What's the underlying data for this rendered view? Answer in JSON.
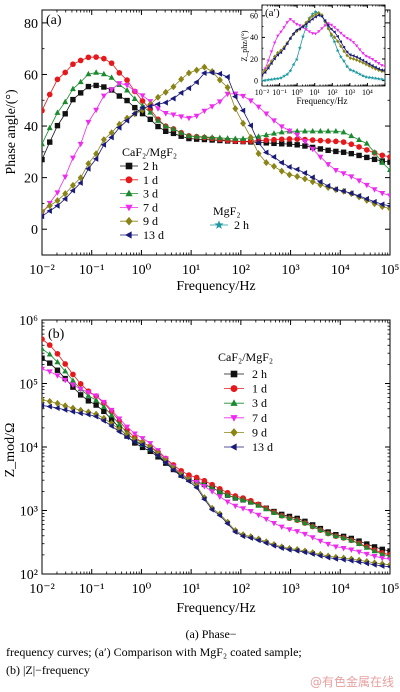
{
  "colors": {
    "2h": "#111111",
    "1d": "#e5191c",
    "3d": "#1a8a2e",
    "7d": "#ee2bee",
    "9d": "#8a8417",
    "13d": "#1a1a7a",
    "mgf2": "#1f9aa0"
  },
  "chart_data": [
    {
      "id": "a",
      "type": "line",
      "panel_label": "(a)",
      "ylabel": "Phase angle/(°)",
      "xlabel": "Frequency/Hz",
      "x_scale": "log",
      "xlim": [
        0.01,
        100000
      ],
      "ylim": [
        -10,
        85
      ],
      "y_ticks": [
        0,
        20,
        40,
        60,
        80
      ],
      "x_tick_labels": [
        "10⁻²",
        "10⁻¹",
        "10⁰",
        "10¹",
        "10²",
        "10³",
        "10⁴",
        "10⁵"
      ],
      "legend_title": "CaF₂/MgF₂",
      "legend2_title": "MgF₂",
      "series": [
        {
          "name": "2 h",
          "key": "2h",
          "marker": "square",
          "points": [
            [
              0.01,
              27
            ],
            [
              0.02,
              40
            ],
            [
              0.05,
              52
            ],
            [
              0.1,
              56
            ],
            [
              0.2,
              55
            ],
            [
              0.5,
              50
            ],
            [
              1,
              45
            ],
            [
              3,
              38
            ],
            [
              10,
              35
            ],
            [
              100,
              34
            ],
            [
              1000,
              33
            ],
            [
              10000,
              30
            ],
            [
              100000,
              26
            ]
          ]
        },
        {
          "name": "1 d",
          "key": "1d",
          "marker": "circle",
          "points": [
            [
              0.01,
              46
            ],
            [
              0.02,
              58
            ],
            [
              0.05,
              65
            ],
            [
              0.1,
              67
            ],
            [
              0.2,
              66
            ],
            [
              0.5,
              58
            ],
            [
              1,
              50
            ],
            [
              3,
              40
            ],
            [
              10,
              36
            ],
            [
              100,
              34
            ],
            [
              1000,
              35
            ],
            [
              10000,
              34
            ],
            [
              100000,
              28
            ]
          ]
        },
        {
          "name": "3 d",
          "key": "3d",
          "marker": "triangle-up",
          "points": [
            [
              0.01,
              33
            ],
            [
              0.02,
              45
            ],
            [
              0.05,
              56
            ],
            [
              0.1,
              61
            ],
            [
              0.2,
              60
            ],
            [
              0.5,
              54
            ],
            [
              1,
              48
            ],
            [
              3,
              40
            ],
            [
              10,
              36
            ],
            [
              100,
              35
            ],
            [
              1000,
              38
            ],
            [
              10000,
              38
            ],
            [
              30000,
              34
            ],
            [
              100000,
              23
            ]
          ]
        },
        {
          "name": "7 d",
          "key": "7d",
          "marker": "triangle-down",
          "points": [
            [
              0.01,
              6
            ],
            [
              0.02,
              14
            ],
            [
              0.05,
              30
            ],
            [
              0.1,
              44
            ],
            [
              0.2,
              53
            ],
            [
              0.4,
              57
            ],
            [
              1,
              52
            ],
            [
              3,
              45
            ],
            [
              10,
              43
            ],
            [
              30,
              48
            ],
            [
              60,
              53
            ],
            [
              100,
              52
            ],
            [
              1000,
              38
            ],
            [
              10000,
              22
            ],
            [
              100000,
              13
            ]
          ]
        },
        {
          "name": "9 d",
          "key": "9d",
          "marker": "diamond",
          "points": [
            [
              0.01,
              7
            ],
            [
              0.02,
              11
            ],
            [
              0.05,
              18
            ],
            [
              0.1,
              27
            ],
            [
              0.2,
              36
            ],
            [
              0.5,
              43
            ],
            [
              1,
              46
            ],
            [
              3,
              53
            ],
            [
              10,
              61
            ],
            [
              20,
              63
            ],
            [
              50,
              56
            ],
            [
              100,
              42
            ],
            [
              300,
              26
            ],
            [
              1000,
              21
            ],
            [
              10000,
              15
            ],
            [
              100000,
              8
            ]
          ]
        },
        {
          "name": "13 d",
          "key": "13d",
          "marker": "triangle-left",
          "points": [
            [
              0.01,
              5
            ],
            [
              0.02,
              9
            ],
            [
              0.05,
              16
            ],
            [
              0.1,
              25
            ],
            [
              0.2,
              34
            ],
            [
              0.5,
              42
            ],
            [
              1,
              47
            ],
            [
              3,
              49
            ],
            [
              10,
              55
            ],
            [
              20,
              61
            ],
            [
              50,
              60
            ],
            [
              100,
              47
            ],
            [
              300,
              30
            ],
            [
              1000,
              24
            ],
            [
              10000,
              15
            ],
            [
              100000,
              9
            ]
          ]
        }
      ],
      "mgf2_legend": {
        "name": "2 h",
        "key": "mgf2",
        "marker": "star"
      }
    },
    {
      "id": "a_inset",
      "type": "line",
      "panel_label": "(a′)",
      "ylabel": "Z_phz/(°)",
      "xlabel": "Frequency/Hz",
      "x_scale": "log",
      "xlim": [
        0.01,
        100000
      ],
      "ylim": [
        -5,
        70
      ],
      "y_ticks": [
        0,
        20,
        40,
        60
      ],
      "x_tick_labels": [
        "10⁻²",
        "10⁻¹",
        "10⁰",
        "10¹",
        "10²",
        "10³",
        "10⁴"
      ],
      "series": [
        {
          "name": "MgF₂ 2 h",
          "key": "mgf2",
          "marker": "star",
          "points": [
            [
              0.01,
              0
            ],
            [
              0.1,
              2
            ],
            [
              0.3,
              6
            ],
            [
              1,
              20
            ],
            [
              2,
              40
            ],
            [
              5,
              58
            ],
            [
              10,
              64
            ],
            [
              20,
              62
            ],
            [
              50,
              52
            ],
            [
              100,
              40
            ],
            [
              300,
              22
            ],
            [
              1000,
              10
            ],
            [
              10000,
              3
            ],
            [
              100000,
              1
            ]
          ]
        },
        {
          "name": "7 d",
          "key": "7d",
          "marker": "triangle-down",
          "points": [
            [
              0.01,
              6
            ],
            [
              0.1,
              44
            ],
            [
              0.4,
              57
            ],
            [
              1,
              52
            ],
            [
              10,
              43
            ],
            [
              60,
              53
            ],
            [
              1000,
              38
            ],
            [
              10000,
              22
            ],
            [
              100000,
              13
            ]
          ]
        },
        {
          "name": "9 d",
          "key": "9d",
          "marker": "diamond",
          "points": [
            [
              0.01,
              7
            ],
            [
              0.1,
              27
            ],
            [
              1,
              46
            ],
            [
              10,
              61
            ],
            [
              20,
              63
            ],
            [
              100,
              42
            ],
            [
              1000,
              21
            ],
            [
              100000,
              8
            ]
          ]
        },
        {
          "name": "13 d",
          "key": "13d",
          "marker": "triangle-left",
          "points": [
            [
              0.01,
              5
            ],
            [
              0.1,
              25
            ],
            [
              1,
              47
            ],
            [
              20,
              61
            ],
            [
              100,
              47
            ],
            [
              1000,
              24
            ],
            [
              100000,
              9
            ]
          ]
        }
      ]
    },
    {
      "id": "b",
      "type": "line",
      "panel_label": "(b)",
      "ylabel": "Z_mod/Ω",
      "xlabel": "Frequency/Hz",
      "x_scale": "log",
      "y_scale": "log",
      "xlim": [
        0.01,
        100000
      ],
      "ylim": [
        100,
        1000000
      ],
      "y_tick_labels": [
        "10²",
        "10³",
        "10⁴",
        "10⁵",
        "10⁶"
      ],
      "x_tick_labels": [
        "10⁻²",
        "10⁻¹",
        "10⁰",
        "10¹",
        "10²",
        "10³",
        "10⁴",
        "10⁵"
      ],
      "legend_title": "CaF₂/MgF₂",
      "series": [
        {
          "name": "2 h",
          "key": "2h",
          "marker": "square",
          "points": [
            [
              0.01,
              250000
            ],
            [
              0.1,
              50000
            ],
            [
              1,
              10000
            ],
            [
              10,
              3000
            ],
            [
              100,
              1500
            ],
            [
              1000,
              800
            ],
            [
              10000,
              400
            ],
            [
              100000,
              230
            ]
          ]
        },
        {
          "name": "1 d",
          "key": "1d",
          "marker": "circle",
          "points": [
            [
              0.01,
              500000
            ],
            [
              0.1,
              70000
            ],
            [
              1,
              12000
            ],
            [
              10,
              3500
            ],
            [
              100,
              1600
            ],
            [
              1000,
              750
            ],
            [
              10000,
              380
            ],
            [
              100000,
              200
            ]
          ]
        },
        {
          "name": "3 d",
          "key": "3d",
          "marker": "triangle-up",
          "points": [
            [
              0.01,
              350000
            ],
            [
              0.1,
              60000
            ],
            [
              1,
              11000
            ],
            [
              10,
              3000
            ],
            [
              100,
              1500
            ],
            [
              1000,
              750
            ],
            [
              10000,
              380
            ],
            [
              100000,
              190
            ]
          ]
        },
        {
          "name": "7 d",
          "key": "7d",
          "marker": "triangle-down",
          "points": [
            [
              0.01,
              170000
            ],
            [
              0.1,
              70000
            ],
            [
              1,
              14000
            ],
            [
              10,
              3000
            ],
            [
              100,
              1100
            ],
            [
              1000,
              500
            ],
            [
              10000,
              260
            ],
            [
              100000,
              170
            ]
          ]
        },
        {
          "name": "9 d",
          "key": "9d",
          "marker": "diamond",
          "points": [
            [
              0.01,
              55000
            ],
            [
              0.1,
              35000
            ],
            [
              1,
              12000
            ],
            [
              10,
              3000
            ],
            [
              30,
              1000
            ],
            [
              100,
              420
            ],
            [
              1000,
              250
            ],
            [
              10000,
              180
            ],
            [
              100000,
              140
            ]
          ]
        },
        {
          "name": "13 d",
          "key": "13d",
          "marker": "triangle-left",
          "points": [
            [
              0.01,
              45000
            ],
            [
              0.1,
              32000
            ],
            [
              1,
              11000
            ],
            [
              10,
              2800
            ],
            [
              30,
              950
            ],
            [
              100,
              400
            ],
            [
              1000,
              240
            ],
            [
              10000,
              170
            ],
            [
              100000,
              130
            ]
          ]
        }
      ]
    }
  ],
  "caption": {
    "line1": "(a)  Phase−",
    "line2": "frequency curves; (a′) Comparison with MgF₂ coated sample;",
    "line3": "(b) |Z|−frequency"
  },
  "watermark": "@有色金属在线"
}
